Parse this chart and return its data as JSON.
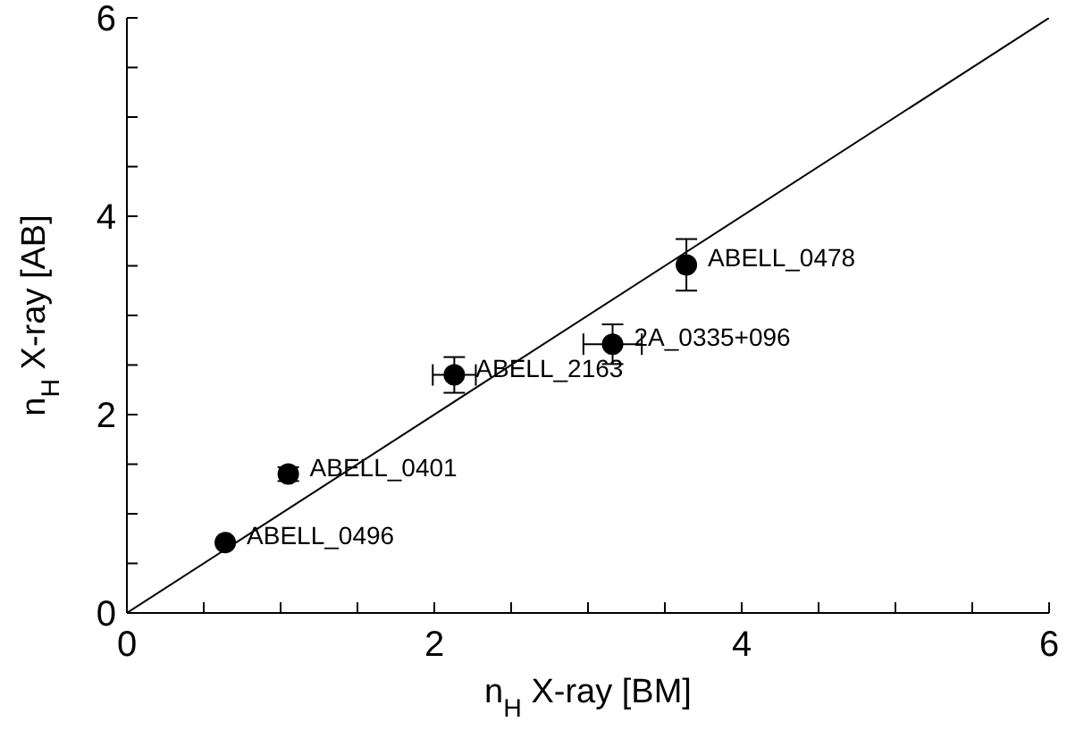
{
  "chart_data": {
    "type": "scatter",
    "xlabel": "n$_{H}$ X-ray [BM]",
    "ylabel": "n$_{H}$ X-ray [AB]",
    "xlim": [
      0,
      6
    ],
    "ylim": [
      0,
      6
    ],
    "xticks": [
      0,
      {
        "value": 0.5,
        "label": null
      },
      {
        "value": 1,
        "label": null
      },
      {
        "value": 1.5,
        "label": null
      },
      2,
      {
        "value": 2.5,
        "label": null
      },
      {
        "value": 3,
        "label": null
      },
      {
        "value": 3.5,
        "label": null
      },
      4,
      {
        "value": 4.5,
        "label": null
      },
      {
        "value": 5,
        "label": null
      },
      {
        "value": 5.5,
        "label": null
      },
      6
    ],
    "yticks": [
      0,
      {
        "value": 0.5,
        "label": null
      },
      {
        "value": 1,
        "label": null
      },
      {
        "value": 1.5,
        "label": null
      },
      2,
      {
        "value": 2.5,
        "label": null
      },
      {
        "value": 3,
        "label": null
      },
      {
        "value": 3.5,
        "label": null
      },
      4,
      {
        "value": 4.5,
        "label": null
      },
      {
        "value": 5,
        "label": null
      },
      {
        "value": 5.5,
        "label": null
      },
      6
    ],
    "grid": false,
    "legend": false,
    "marker": "circle",
    "series": [
      {
        "color": "#000000",
        "x": [
          0.64,
          1.05,
          2.13,
          3.16,
          3.64
        ],
        "values": [
          0.71,
          1.4,
          2.4,
          2.71,
          3.51
        ],
        "errors": [
          null,
          0.07,
          0.18,
          0.2,
          0.26
        ],
        "xerrors": [
          null,
          null,
          0.14,
          0.19,
          null
        ]
      },
      {
        "type": "line",
        "color": "#000000",
        "x": [
          0,
          6
        ],
        "values": [
          0,
          6
        ],
        "line_style": "solid",
        "marker": "none"
      }
    ],
    "annotations": [
      {
        "text": "ABELL_0496",
        "x": 0.64,
        "y": 0.71
      },
      {
        "text": "ABELL_0401",
        "x": 1.05,
        "y": 1.4
      },
      {
        "text": "ABELL_2163",
        "x": 2.13,
        "y": 2.4
      },
      {
        "text": "2A_0335+096",
        "x": 3.16,
        "y": 2.71
      },
      {
        "text": "ABELL_0478",
        "x": 3.64,
        "y": 3.51
      }
    ]
  }
}
